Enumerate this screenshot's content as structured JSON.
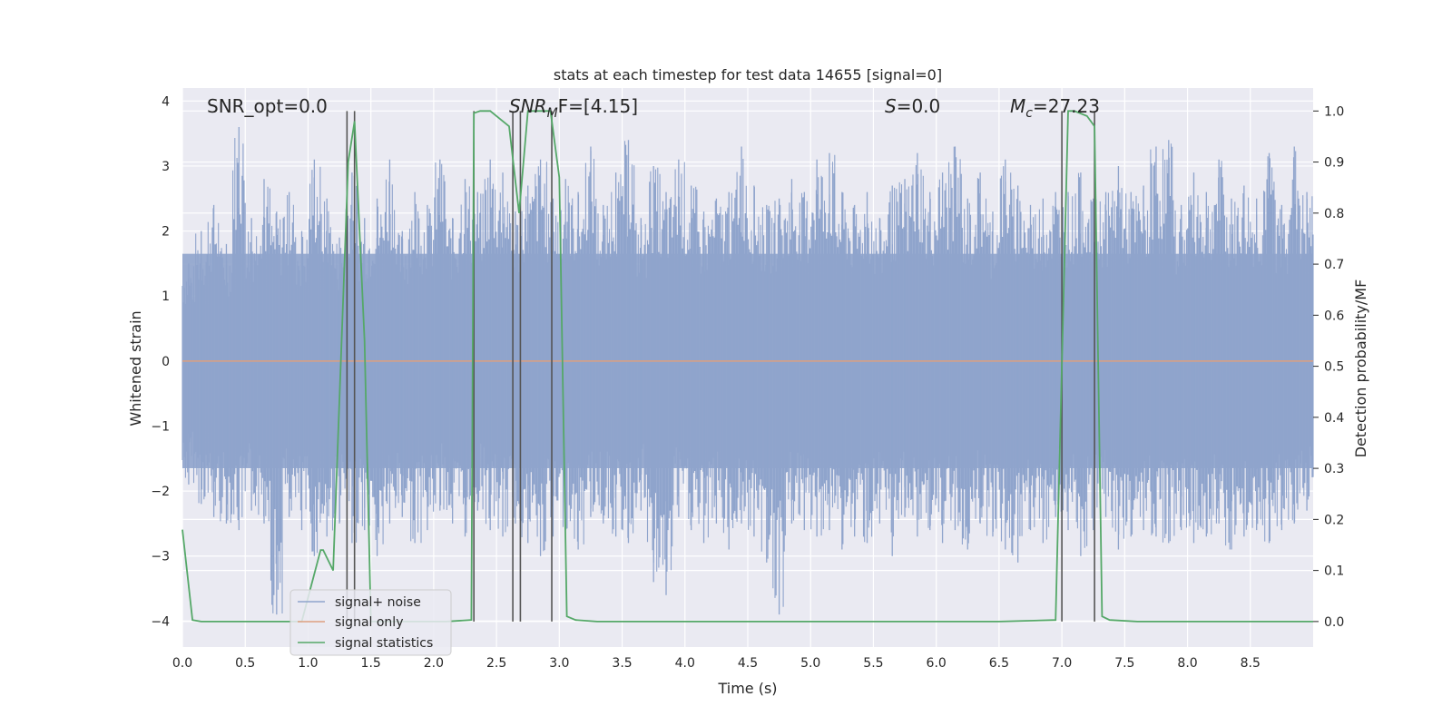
{
  "chart_data": {
    "type": "line",
    "title": "stats at each timestep for test data 14655 [signal=0]",
    "xlabel": "Time (s)",
    "ylabel": "Whitened strain",
    "y2label": "Detection probability/MF",
    "xlim": [
      0,
      9.0
    ],
    "ylim": [
      -4.4,
      4.2
    ],
    "y2lim": [
      -0.05,
      1.045
    ],
    "xticks": [
      "0.0",
      "0.5",
      "1.0",
      "1.5",
      "2.0",
      "2.5",
      "3.0",
      "3.5",
      "4.0",
      "4.5",
      "5.0",
      "5.5",
      "6.0",
      "6.5",
      "7.0",
      "7.5",
      "8.0",
      "8.5"
    ],
    "yticks": [
      "4",
      "3",
      "2",
      "1",
      "0",
      "−1",
      "−2",
      "−3",
      "−4"
    ],
    "y2ticks": [
      "1.0",
      "0.9",
      "0.8",
      "0.7",
      "0.6",
      "0.5",
      "0.4",
      "0.3",
      "0.2",
      "0.1",
      "0.0"
    ],
    "grid": true,
    "legend": {
      "placement": "lower-left",
      "entries": [
        {
          "name": "signal+ noise",
          "color": "#8fa4cc"
        },
        {
          "name": "signal only",
          "color": "#dd9f7f"
        },
        {
          "name": "signal statistics",
          "color": "#55a868"
        }
      ]
    },
    "annotations": {
      "snr_opt": "SNR_opt=0.0",
      "snr_mf_main": "SNR",
      "snr_mf_sub": "M",
      "snr_mf_rest": "F=[4.15]",
      "s_main": "S",
      "s_rest": "=0.0",
      "mc_main": "M",
      "mc_sub": "c",
      "mc_rest": "=27.23"
    },
    "series": [
      {
        "name": "signal+ noise",
        "color": "#8fa4cc",
        "description_values": "whitened noisy strain, dense around 0 within about ±1.7, spikes to about ±3.6; envelope samples below",
        "upper": [
          1.5,
          2.0,
          2.4,
          1.8,
          3.6,
          2.2,
          2.8,
          2.3,
          2.6,
          2.0,
          3.1,
          2.5,
          1.9,
          2.9,
          2.2,
          2.5,
          3.1,
          2.0,
          2.6,
          2.4,
          3.1,
          2.2,
          2.8,
          2.6,
          3.1,
          2.9,
          2.3,
          2.7,
          3.1,
          2.5,
          2.8,
          2.6,
          3.3,
          2.4,
          2.9,
          3.4,
          2.2,
          3.0,
          2.6,
          3.1,
          2.7,
          2.3,
          2.5,
          2.6,
          3.3,
          2.7,
          2.4,
          2.5,
          2.8,
          2.6,
          3.1,
          3.2,
          2.6,
          2.4,
          2.6,
          2.2,
          2.7,
          2.8,
          3.2,
          2.6,
          2.9,
          3.3,
          2.5,
          2.9,
          2.3,
          3.1,
          2.7,
          2.4,
          2.5,
          2.6,
          2.6,
          2.9,
          2.5,
          2.6,
          3.0,
          2.6,
          2.7,
          3.3,
          3.4,
          2.4,
          2.9,
          2.6,
          3.1,
          2.5,
          2.7,
          2.5,
          3.2,
          2.4,
          3.3,
          2.6
        ],
        "lower": [
          -1.9,
          -2.2,
          -2.4,
          -2.5,
          -2.6,
          -2.3,
          -2.5,
          -3.9,
          -2.4,
          -2.6,
          -3.0,
          -2.7,
          -2.5,
          -2.8,
          -2.6,
          -3.0,
          -2.5,
          -2.4,
          -2.8,
          -2.6,
          -2.3,
          -2.5,
          -2.7,
          -2.3,
          -2.6,
          -2.7,
          -2.5,
          -2.8,
          -3.0,
          -2.7,
          -2.6,
          -2.9,
          -2.4,
          -2.5,
          -2.7,
          -2.8,
          -2.3,
          -3.4,
          -3.6,
          -2.4,
          -2.6,
          -2.8,
          -2.5,
          -2.9,
          -2.5,
          -2.7,
          -3.1,
          -3.9,
          -2.5,
          -2.6,
          -2.7,
          -2.6,
          -2.9,
          -2.7,
          -2.8,
          -2.5,
          -3.0,
          -2.4,
          -2.7,
          -2.6,
          -2.8,
          -2.6,
          -2.9,
          -2.5,
          -2.7,
          -2.9,
          -3.1,
          -2.6,
          -2.8,
          -2.4,
          -2.6,
          -3.0,
          -2.6,
          -2.4,
          -2.9,
          -2.7,
          -2.6,
          -2.7,
          -2.8,
          -2.6,
          -2.8,
          -2.7,
          -2.5,
          -2.9,
          -2.7,
          -2.6,
          -2.8,
          -2.6,
          -2.5,
          -2.3
        ]
      },
      {
        "name": "signal only",
        "color": "#dd9f7f",
        "x": [
          0,
          9.0
        ],
        "y": [
          0,
          0
        ]
      },
      {
        "name": "signal statistics",
        "color": "#55a868",
        "axis": "right",
        "x": [
          0.0,
          0.08,
          0.15,
          0.3,
          0.5,
          0.7,
          0.9,
          0.95,
          1.1,
          1.12,
          1.2,
          1.32,
          1.37,
          1.45,
          1.5,
          1.7,
          1.9,
          2.1,
          2.3,
          2.32,
          2.37,
          2.45,
          2.6,
          2.68,
          2.75,
          2.8,
          2.9,
          2.93,
          3.0,
          3.06,
          3.13,
          3.3,
          3.6,
          4.0,
          4.5,
          5.0,
          5.5,
          6.0,
          6.5,
          6.95,
          7.05,
          7.1,
          7.2,
          7.26,
          7.32,
          7.38,
          7.6,
          8.0,
          8.5,
          9.0
        ],
        "y": [
          0.18,
          0.003,
          0.0,
          0.0,
          0.0,
          0.0,
          0.0,
          0.0,
          0.14,
          0.14,
          0.1,
          0.9,
          0.98,
          0.55,
          0.0,
          0.0,
          0.0,
          0.0,
          0.003,
          0.996,
          1.0,
          1.0,
          0.97,
          0.8,
          1.0,
          1.0,
          1.0,
          1.0,
          0.87,
          0.01,
          0.003,
          0.0,
          0.0,
          0.0,
          0.0,
          0.0,
          0.0,
          0.0,
          0.0,
          0.003,
          1.0,
          1.0,
          0.99,
          0.97,
          0.01,
          0.003,
          0.0,
          0.0,
          0.0,
          0.0
        ]
      }
    ],
    "vertical_lines_x": [
      1.31,
      1.37,
      2.32,
      2.63,
      2.69,
      2.94,
      7.0,
      7.26
    ]
  }
}
